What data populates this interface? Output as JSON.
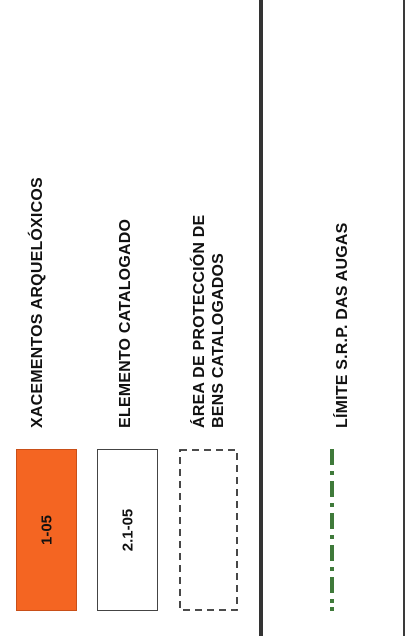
{
  "legend": {
    "items": [
      {
        "label": "XACEMENTOS ARQUELÓXICOS",
        "code": "1-05",
        "symbol": "filled-box",
        "color": "#f46522"
      },
      {
        "label": "ELEMENTO  CATALOGADO",
        "code": "2.1-05",
        "symbol": "outlined-box"
      },
      {
        "label_line1": "ÁREA DE PROTECCIÓN DE",
        "label_line2": "BENS CATALOGADOS",
        "symbol": "dashed-box"
      },
      {
        "label": "LÍMITE S.R.P. DAS AUGAS",
        "symbol": "green-dash-dot-line",
        "color": "#3f7a3a"
      }
    ]
  }
}
